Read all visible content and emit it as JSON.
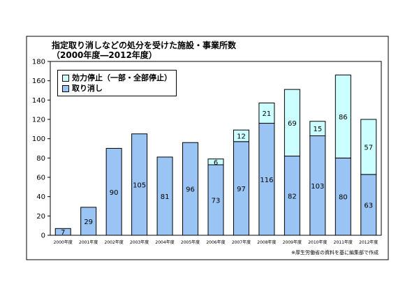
{
  "chart_data": {
    "type": "bar",
    "stacked": true,
    "title": "指定取り消しなどの処分を受けた施設・事業所数",
    "subtitle": "（2000年度―2012年度）",
    "categories": [
      "2000年度",
      "2001年度",
      "2002年度",
      "2003年度",
      "2004年度",
      "2005年度",
      "2006年度",
      "2007年度",
      "2008年度",
      "2009年度",
      "2010年度",
      "2011年度",
      "2012年度"
    ],
    "series": [
      {
        "name": "取り消し",
        "values": [
          7,
          29,
          90,
          105,
          81,
          96,
          73,
          97,
          116,
          82,
          103,
          80,
          63
        ]
      },
      {
        "name": "効力停止（一部・全部停止）",
        "values": [
          null,
          null,
          null,
          null,
          null,
          null,
          6,
          12,
          21,
          69,
          15,
          86,
          57
        ]
      }
    ],
    "ylim": [
      0,
      180
    ],
    "yticks": [
      "0",
      "20",
      "40",
      "60",
      "80",
      "100",
      "120",
      "140",
      "160",
      "180"
    ],
    "legend_position": "top-left",
    "grid": false,
    "note": "※厚生労働省の資料を基に編集部で作成",
    "colors": {
      "取り消し": "#99c4f4",
      "効力停止（一部・全部停止）": "#ccffff",
      "frame": "#000000"
    }
  }
}
